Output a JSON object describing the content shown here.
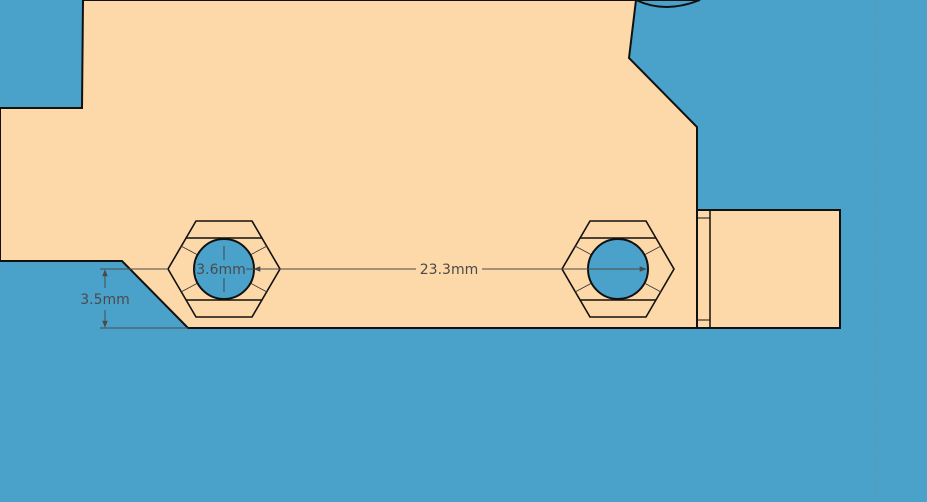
{
  "colors": {
    "background": "#4aa2cb",
    "part_fill": "#fdd8a8",
    "outline": "#111111",
    "dimension_line": "#4a4a4a"
  },
  "dimensions": {
    "hole_diameter": "3.6mm",
    "hole_spacing": "23.3mm",
    "edge_offset": "3.5mm"
  }
}
